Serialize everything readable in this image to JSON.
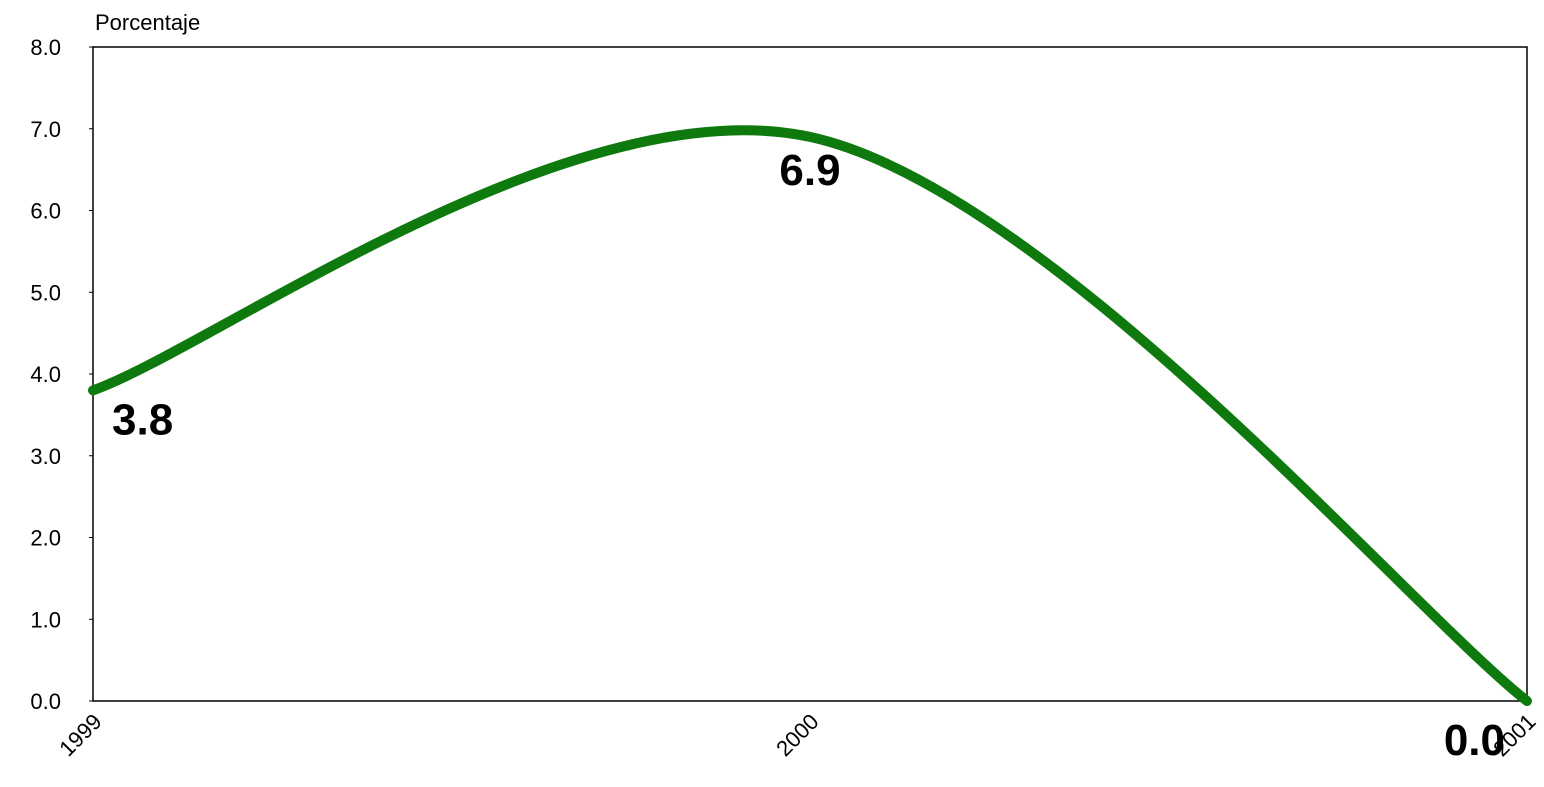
{
  "chart_data": {
    "type": "line",
    "y_label": "Porcentaje",
    "categories": [
      "1999",
      "2000",
      "2001"
    ],
    "values": [
      3.8,
      6.9,
      0.0
    ],
    "value_labels": [
      "3.8",
      "6.9",
      "0.0"
    ],
    "color": "#0e7a0e",
    "smooth": true,
    "ylim": [
      0,
      8
    ],
    "yticks": [
      {
        "value": 0,
        "label": "0.0"
      },
      {
        "value": 1,
        "label": "1.0"
      },
      {
        "value": 2,
        "label": "2.0"
      },
      {
        "value": 3,
        "label": "3.0"
      },
      {
        "value": 4,
        "label": "4.0"
      },
      {
        "value": 5,
        "label": "5.0"
      },
      {
        "value": 6,
        "label": "6.0"
      },
      {
        "value": 7,
        "label": "7.0"
      },
      {
        "value": 8,
        "label": "8.0"
      }
    ],
    "grid": false
  }
}
